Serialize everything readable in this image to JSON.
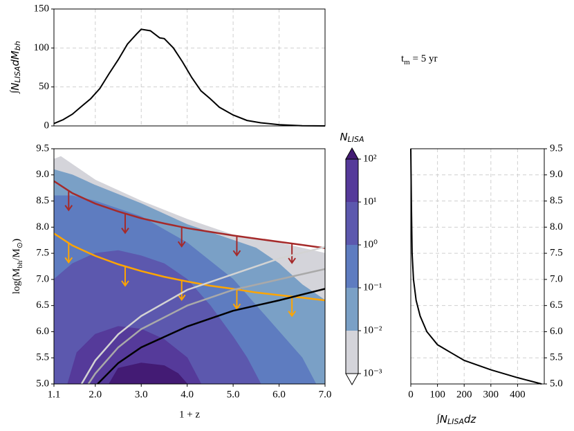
{
  "chart_data": [
    {
      "type": "line",
      "ylabel": [
        {
          "text": "∫"
        },
        {
          "text": "N",
          "sans": true
        },
        {
          "text": "LISA",
          "sub": true
        },
        {
          "text": "dM",
          "sans": true
        },
        {
          "text": "bh",
          "sub": true
        }
      ],
      "x": [
        1.1,
        1.3,
        1.5,
        1.7,
        1.9,
        2.1,
        2.3,
        2.5,
        2.7,
        2.9,
        3.0,
        3.2,
        3.4,
        3.5,
        3.7,
        3.9,
        4.1,
        4.3,
        4.5,
        4.7,
        5.0,
        5.3,
        5.6,
        6.0,
        6.5,
        7.0
      ],
      "y": [
        3,
        8,
        15,
        25,
        35,
        48,
        67,
        85,
        105,
        118,
        124,
        122,
        113,
        112,
        100,
        82,
        62,
        45,
        35,
        24,
        14,
        7,
        4,
        1.5,
        0.3,
        0
      ],
      "color": "#000000",
      "xlim": [
        1.1,
        7.0
      ],
      "ylim": [
        0,
        150
      ],
      "yticks": [
        0,
        50,
        100,
        150
      ],
      "grid": true
    },
    {
      "type": "contour",
      "xlabel": "1 + z",
      "ylabel": [
        {
          "text": "log(M"
        },
        {
          "text": "bh",
          "sub": true
        },
        {
          "text": "/M"
        },
        {
          "text": "⊙",
          "sub": true
        },
        {
          "text": ")"
        }
      ],
      "annotation": [
        {
          "text": "t"
        },
        {
          "text": "m",
          "sub": true
        },
        {
          "text": " = 5 yr"
        }
      ],
      "xlim": [
        1.1,
        7.0
      ],
      "ylim": [
        5.0,
        9.5
      ],
      "xticks": [
        1.1,
        {
          "value": 2,
          "label": "2.0"
        },
        {
          "value": 3,
          "label": "3.0"
        },
        {
          "value": 4,
          "label": "4.0"
        },
        {
          "value": 5,
          "label": "5.0"
        },
        {
          "value": 6,
          "label": "6.0"
        },
        {
          "value": 7,
          "label": "7.0"
        }
      ],
      "yticks": [
        {
          "value": 5,
          "label": "5.0"
        },
        5.5,
        {
          "value": 6,
          "label": "6.0"
        },
        6.5,
        {
          "value": 7,
          "label": "7.0"
        },
        7.5,
        {
          "value": 8,
          "label": "8.0"
        },
        8.5,
        {
          "value": 9,
          "label": "9.0"
        },
        9.5
      ],
      "regions": [
        {
          "x": [
            1.1,
            1.25,
            2,
            3,
            4,
            5,
            6,
            6.5,
            7,
            7,
            1.1
          ],
          "y": [
            9.3,
            9.35,
            8.9,
            8.5,
            8.15,
            7.85,
            7.7,
            7.6,
            7.5,
            5.0,
            5.0
          ]
        },
        {
          "x": [
            1.1,
            1.5,
            2,
            3,
            4,
            5,
            5.5,
            6,
            6.5,
            7,
            7,
            1.1
          ],
          "y": [
            9.1,
            9.0,
            8.8,
            8.45,
            8.05,
            7.75,
            7.6,
            7.3,
            6.9,
            6.6,
            5.0,
            5.0
          ]
        },
        {
          "x": [
            1.1,
            1.5,
            2,
            3,
            4,
            5,
            5.5,
            6,
            6.5,
            6.8,
            1.1
          ],
          "y": [
            8.6,
            8.6,
            8.5,
            8.2,
            7.7,
            7.0,
            6.5,
            6.0,
            5.5,
            5.0,
            5.0
          ]
        },
        {
          "x": [
            1.1,
            1.5,
            2,
            2.5,
            3,
            3.5,
            4,
            4.5,
            5,
            5.3,
            5.6,
            1.1
          ],
          "y": [
            7.0,
            7.3,
            7.5,
            7.55,
            7.45,
            7.3,
            7.0,
            6.5,
            5.9,
            5.5,
            5.0,
            5.0
          ]
        },
        {
          "x": [
            1.4,
            1.6,
            2,
            2.5,
            3,
            3.5,
            4,
            4.3
          ],
          "y": [
            5.0,
            5.6,
            5.95,
            6.1,
            6.05,
            5.85,
            5.5,
            5.0
          ]
        },
        {
          "x": [
            2.3,
            2.5,
            3,
            3.5,
            3.8,
            4.0
          ],
          "y": [
            5.0,
            5.3,
            5.4,
            5.35,
            5.2,
            5.0
          ]
        }
      ],
      "lines": [
        {
          "color": "#a52a2a",
          "x": [
            1.1,
            1.5,
            2,
            2.5,
            3,
            3.5,
            4,
            4.5,
            5,
            5.5,
            6,
            6.5,
            7
          ],
          "y": [
            8.88,
            8.65,
            8.45,
            8.3,
            8.17,
            8.07,
            7.98,
            7.91,
            7.84,
            7.78,
            7.72,
            7.66,
            7.6
          ],
          "arrows_x": [
            1.42,
            2.65,
            3.88,
            5.08,
            6.28
          ]
        },
        {
          "color": "#ffa500",
          "x": [
            1.1,
            1.5,
            2,
            2.5,
            3,
            3.5,
            4,
            4.5,
            5,
            5.5,
            6,
            6.5,
            7
          ],
          "y": [
            7.88,
            7.65,
            7.45,
            7.29,
            7.16,
            7.05,
            6.96,
            6.88,
            6.82,
            6.75,
            6.7,
            6.65,
            6.6
          ],
          "arrows_x": [
            1.42,
            2.65,
            3.88,
            5.08,
            6.28
          ]
        },
        {
          "color": "#d3d3d3",
          "x": [
            1.7,
            2,
            2.5,
            3,
            4,
            5,
            6,
            7
          ],
          "y": [
            5.0,
            5.45,
            5.95,
            6.3,
            6.8,
            7.1,
            7.4,
            7.62
          ]
        },
        {
          "color": "#a9a9a9",
          "x": [
            1.85,
            2,
            2.5,
            3,
            4,
            5,
            6,
            7
          ],
          "y": [
            5.0,
            5.2,
            5.7,
            6.05,
            6.5,
            6.8,
            7.0,
            7.2
          ]
        },
        {
          "color": "#000000",
          "x": [
            2.05,
            2.5,
            3,
            4,
            5,
            6,
            7
          ],
          "y": [
            5.0,
            5.4,
            5.7,
            6.1,
            6.4,
            6.6,
            6.82
          ]
        }
      ],
      "colorbar": {
        "label": [
          {
            "text": "N",
            "sans": true
          },
          {
            "text": "LISA",
            "sub": true
          }
        ],
        "log": true,
        "levels": [
          0.001,
          0.01,
          0.1,
          1,
          10,
          100
        ],
        "colors": [
          "#d4d4da",
          "#7aa0c6",
          "#5e7cc0",
          "#5c58ae",
          "#553a9a",
          "#431b74"
        ],
        "under_color": "#ffffff",
        "ticks": [
          {
            "value": 0.001,
            "label": "10⁻³"
          },
          {
            "value": 0.01,
            "label": "10⁻²"
          },
          {
            "value": 0.1,
            "label": "10⁻¹"
          },
          {
            "value": 1,
            "label": "10⁰"
          },
          {
            "value": 10,
            "label": "10¹"
          },
          {
            "value": 100,
            "label": "10²"
          }
        ]
      }
    },
    {
      "type": "line",
      "xlabel": [
        {
          "text": "∫"
        },
        {
          "text": "N",
          "sans": true
        },
        {
          "text": "LISA",
          "sub": true
        },
        {
          "text": "dz",
          "sans": true
        }
      ],
      "x": [
        0,
        2,
        5,
        10,
        20,
        35,
        60,
        100,
        150,
        200,
        300,
        400,
        490
      ],
      "y": [
        9.5,
        8.5,
        7.5,
        7.0,
        6.6,
        6.3,
        6.0,
        5.75,
        5.6,
        5.45,
        5.27,
        5.12,
        5.0
      ],
      "color": "#000000",
      "xlim": [
        0,
        500
      ],
      "ylim": [
        5.0,
        9.5
      ],
      "xticks": [
        0,
        100,
        200,
        300,
        400
      ],
      "yticks": [
        {
          "value": 5,
          "label": "5.0"
        },
        5.5,
        {
          "value": 6,
          "label": "6.0"
        },
        6.5,
        {
          "value": 7,
          "label": "7.0"
        },
        7.5,
        {
          "value": 8,
          "label": "8.0"
        },
        8.5,
        {
          "value": 9,
          "label": "9.0"
        },
        9.5
      ],
      "grid": true
    }
  ]
}
